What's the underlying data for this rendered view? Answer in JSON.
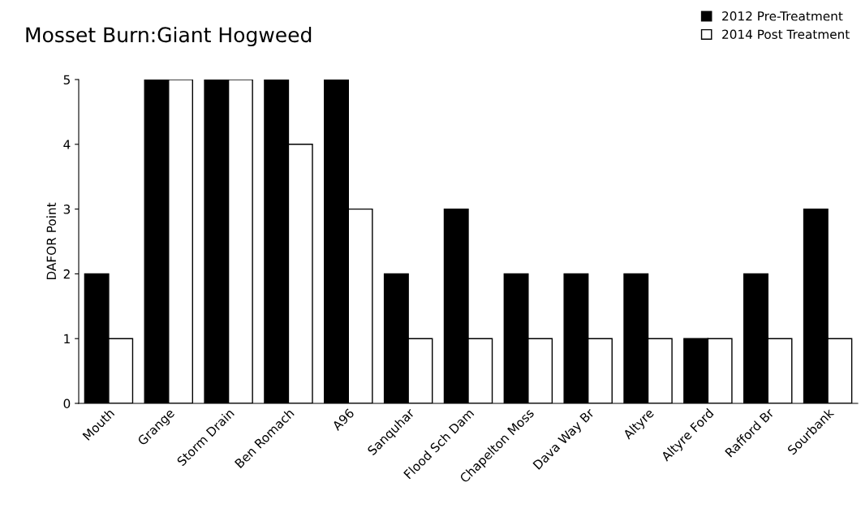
{
  "chart_data": {
    "type": "bar",
    "title": "Mosset Burn:Giant Hogweed",
    "ylabel": "DAFOR Point",
    "categories": [
      "Mouth",
      "Grange",
      "Storm Drain",
      "Ben Romach",
      "A96",
      "Sanquhar",
      "Flood Sch Dam",
      "Chapelton Moss",
      "Dava Way Br",
      "Altyre",
      "Altyre Ford",
      "Rafford Br",
      "Sourbank"
    ],
    "series": [
      {
        "name": "2012 Pre-Treatment",
        "color": "#000000",
        "values": [
          2,
          5,
          5,
          5,
          5,
          2,
          3,
          2,
          2,
          2,
          1,
          2,
          3
        ]
      },
      {
        "name": "2014 Post Treatment",
        "color": "#ffffff",
        "values": [
          1,
          5,
          5,
          4,
          3,
          1,
          1,
          1,
          1,
          1,
          1,
          1,
          1
        ]
      }
    ],
    "ylim": [
      0,
      5
    ],
    "yticks": [
      0,
      1,
      2,
      3,
      4,
      5
    ],
    "grid": false,
    "legend": "top right"
  }
}
